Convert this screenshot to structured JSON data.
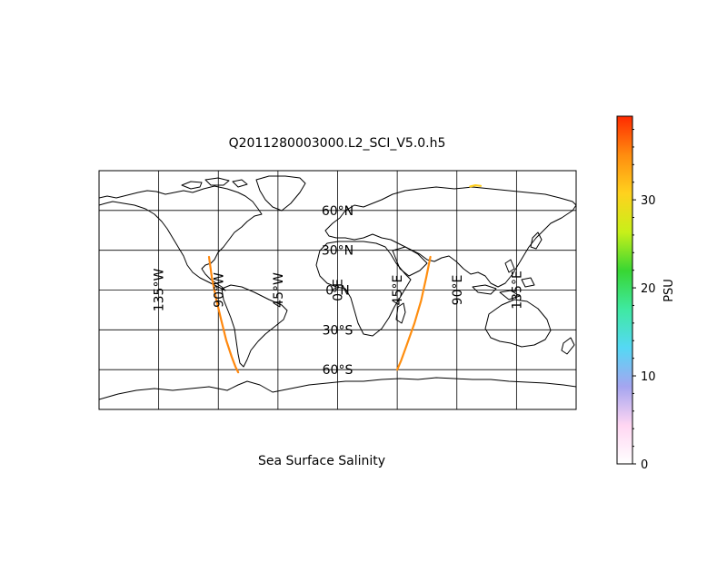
{
  "title": "Q2011280003000.L2_SCI_V5.0.h5",
  "caption": "Sea Surface Salinity",
  "map": {
    "projection": "equirectangular",
    "lon_range": [
      -180,
      180
    ],
    "lat_range": [
      -90,
      90
    ],
    "meridians": [
      -135,
      -90,
      -45,
      0,
      45,
      90,
      135
    ],
    "parallels": [
      -60,
      -30,
      0,
      30,
      60
    ],
    "meridian_labels": [
      "135°W",
      "90°W",
      "45°W",
      "0°E",
      "45°E",
      "90°E",
      "135°E"
    ],
    "parallel_labels": [
      "60°S",
      "30°S",
      "0°N",
      "30°N",
      "60°N"
    ],
    "swaths": [
      {
        "points": [
          [
            -97,
            25
          ],
          [
            -95,
            10
          ],
          [
            -92,
            -5
          ],
          [
            -88,
            -22
          ],
          [
            -84,
            -38
          ],
          [
            -80,
            -50
          ],
          [
            -77,
            -58
          ],
          [
            -75,
            -62
          ]
        ],
        "salinity": 35.3
      },
      {
        "points": [
          [
            70,
            25
          ],
          [
            67,
            10
          ],
          [
            63,
            -8
          ],
          [
            58,
            -25
          ],
          [
            52,
            -42
          ],
          [
            48,
            -53
          ],
          [
            45,
            -60
          ]
        ],
        "salinity": 35.0
      },
      {
        "points": [
          [
            100,
            78
          ],
          [
            104,
            79
          ],
          [
            108,
            78.5
          ]
        ],
        "salinity": 31.0
      }
    ]
  },
  "colorbar": {
    "label": "PSU",
    "min": 0,
    "max": 39.5,
    "ticks": [
      0,
      10,
      20,
      30
    ],
    "tick_labels": [
      "0",
      "10",
      "20",
      "30"
    ],
    "colormap": [
      "#ffffff",
      "#ffd6f2",
      "#a5a5f0",
      "#55d8f5",
      "#3fe9a2",
      "#38d633",
      "#c8f019",
      "#ffd21e",
      "#ff8c0f",
      "#ff2a00"
    ]
  }
}
